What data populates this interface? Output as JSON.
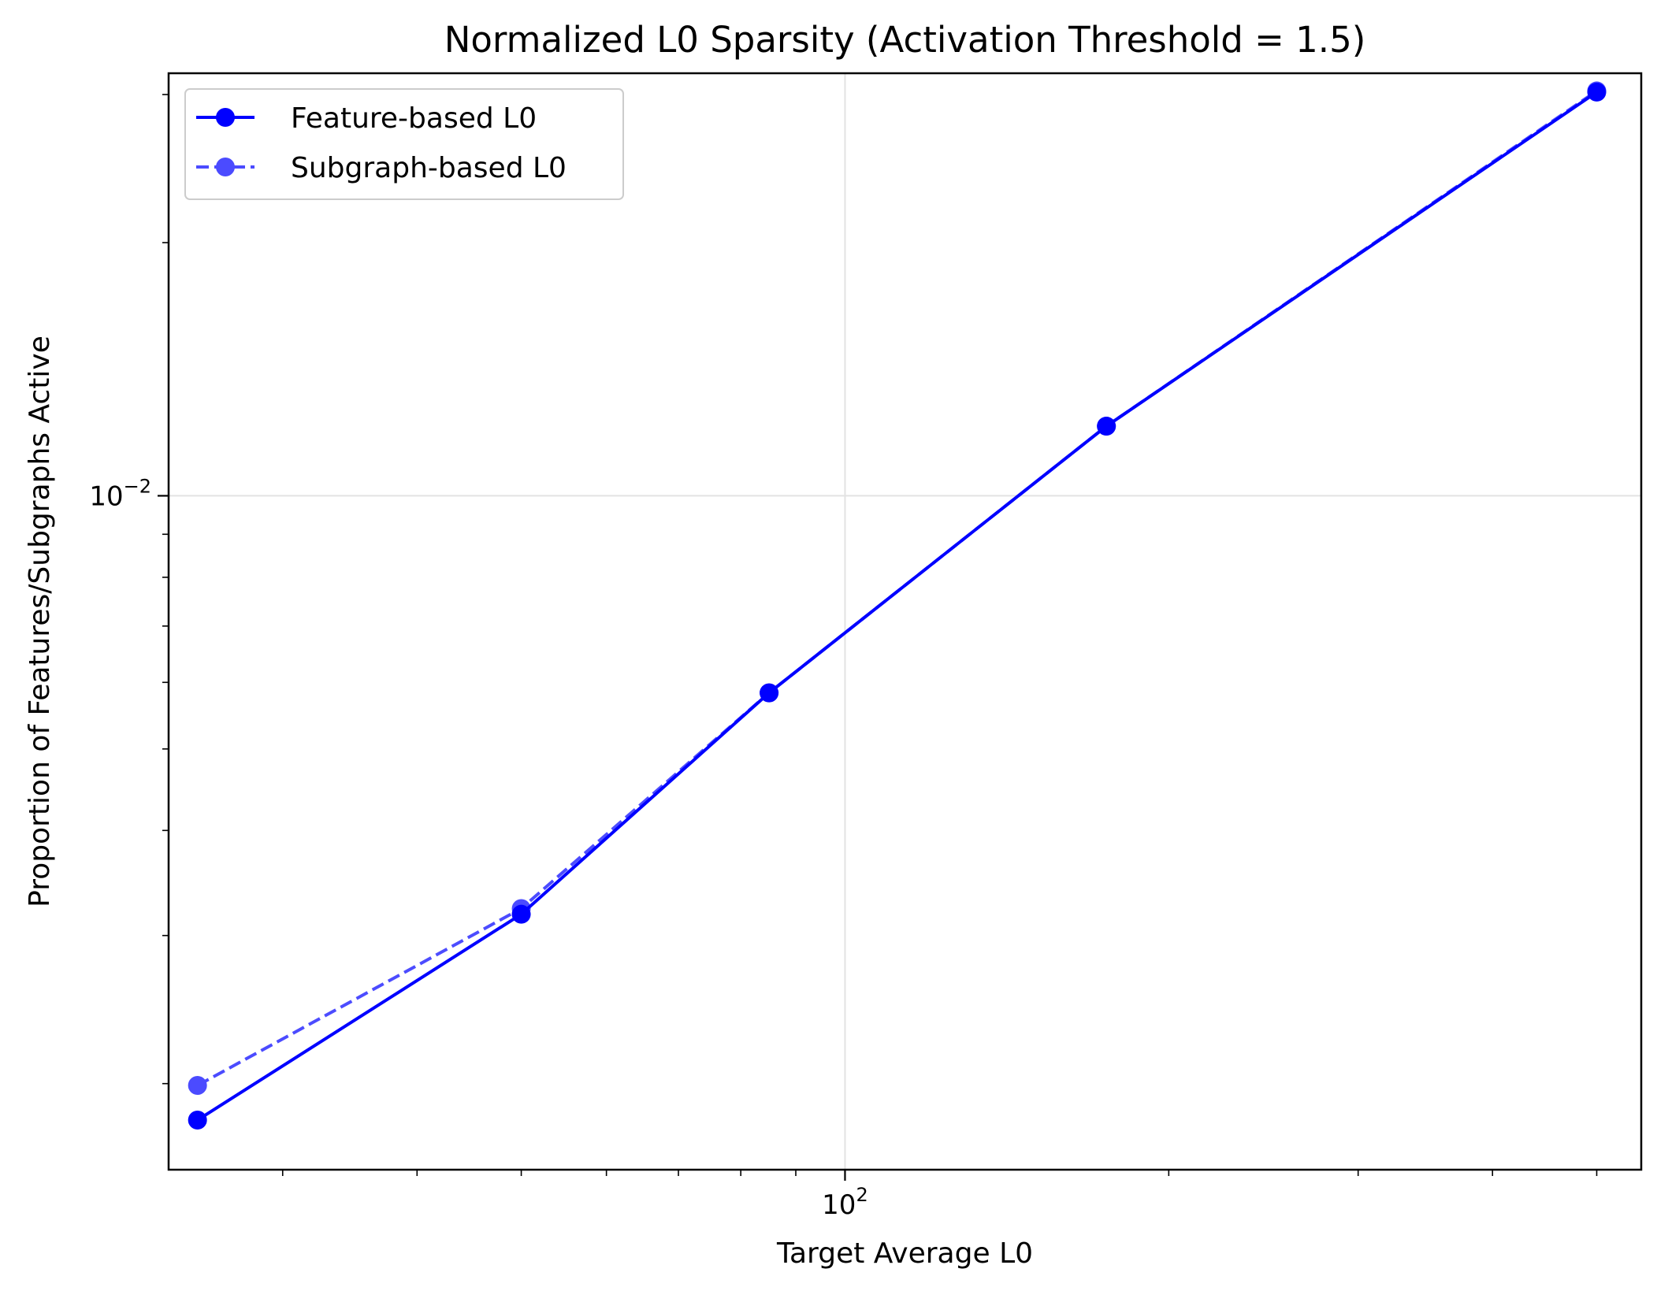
{
  "chart_data": {
    "type": "line",
    "title": "Normalized L0 Sparsity (Activation Threshold = 1.5)",
    "xlabel": "Target Average L0",
    "ylabel": "Proportion of Features/Subgraphs Active",
    "xscale": "log",
    "yscale": "log",
    "xlim": [
      23.5,
      550
    ],
    "ylim": [
      0.00158,
      0.0318
    ],
    "x_major_ticks": [
      {
        "value": 100,
        "base": "10",
        "exp": "2"
      }
    ],
    "y_major_ticks": [
      {
        "value": 0.01,
        "base": "10",
        "exp": "−2"
      }
    ],
    "x_minor_ticks": [
      30,
      40,
      50,
      60,
      70,
      80,
      90,
      200,
      300,
      400,
      500
    ],
    "y_minor_ticks": [
      0.002,
      0.003,
      0.004,
      0.005,
      0.006,
      0.007,
      0.008,
      0.009,
      0.02,
      0.03
    ],
    "grid": true,
    "legend_position": "upper-left",
    "series": [
      {
        "name": "Feature-based L0",
        "style": "solid",
        "color": "#0000ff",
        "opacity": 1.0,
        "x": [
          25,
          50,
          85,
          175,
          500
        ],
        "y": [
          0.00181,
          0.00318,
          0.00583,
          0.0121,
          0.0302
        ]
      },
      {
        "name": "Subgraph-based L0",
        "style": "dashed",
        "color": "#0000ff",
        "opacity": 0.7,
        "x": [
          25,
          50,
          85,
          175,
          500
        ],
        "y": [
          0.00199,
          0.00323,
          0.00583,
          0.0121,
          0.0303
        ]
      }
    ]
  }
}
